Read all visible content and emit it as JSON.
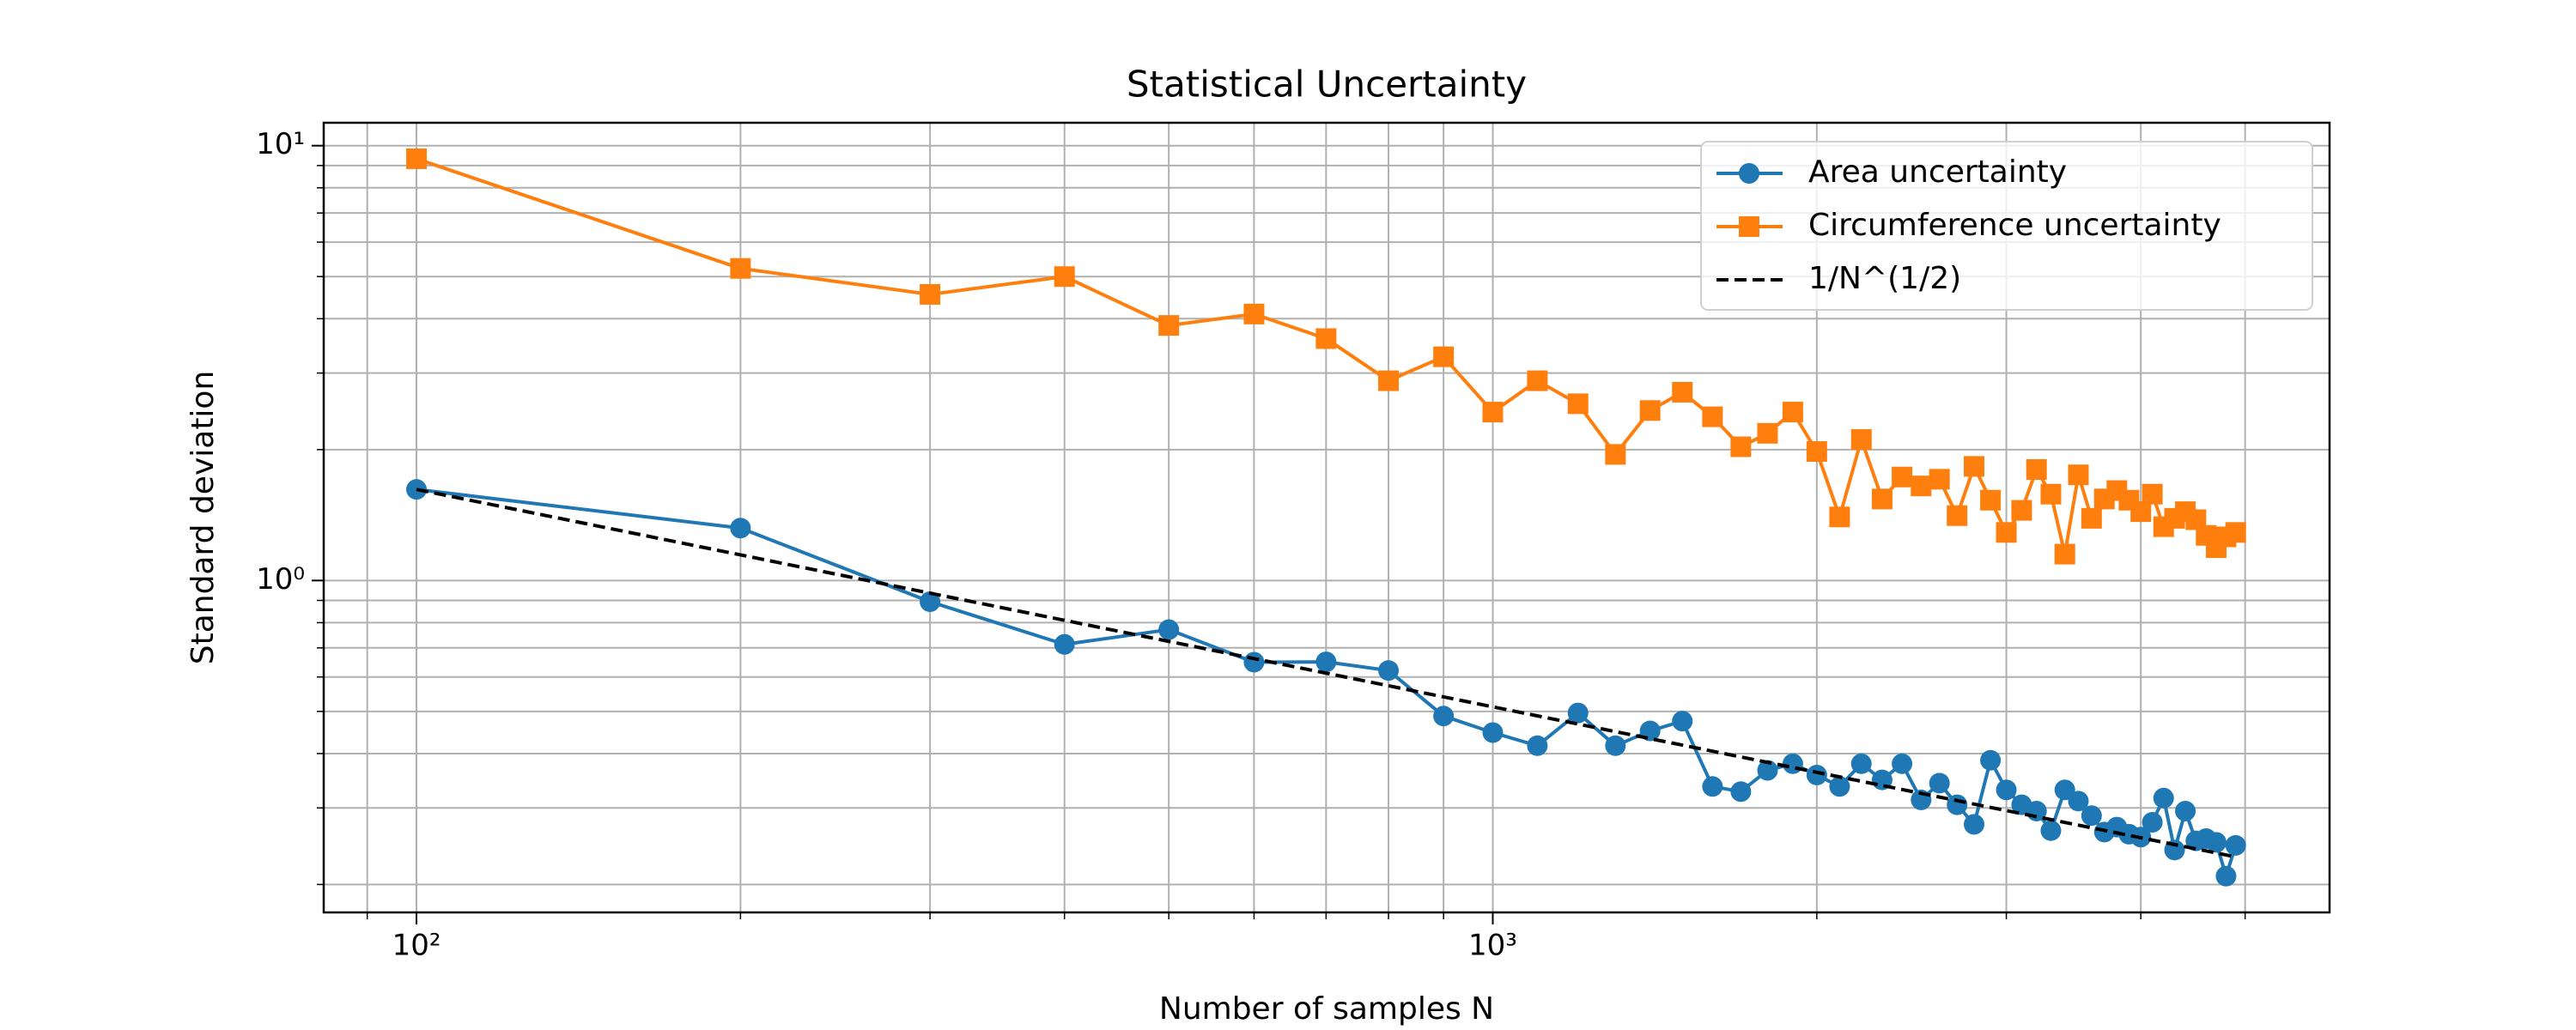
{
  "chart_data": {
    "type": "line",
    "title": "Statistical Uncertainty",
    "xlabel": "Number of samples N",
    "ylabel": "Standard deviation",
    "xscale": "log",
    "yscale": "log",
    "grid": true,
    "legend": "upper right",
    "xlim": [
      82,
      5990
    ],
    "ylim": [
      0.1725,
      11.29
    ],
    "xticks": [
      {
        "value": 100,
        "label": "10²"
      },
      {
        "value": 1000,
        "label": "10³"
      }
    ],
    "yticks": [
      {
        "value": 1,
        "label": "10⁰"
      },
      {
        "value": 10,
        "label": "10¹"
      }
    ],
    "xminorticks": [
      90,
      200,
      300,
      400,
      500,
      600,
      700,
      800,
      900,
      2000,
      3000,
      4000,
      5000
    ],
    "yminorticks": [
      0.2,
      0.3,
      0.4,
      0.5,
      0.6,
      0.7,
      0.8,
      0.9,
      2,
      3,
      4,
      5,
      6,
      7,
      8,
      9
    ],
    "x": [
      100,
      200,
      300,
      400,
      500,
      600,
      700,
      800,
      900,
      1000,
      1100,
      1200,
      1300,
      1400,
      1500,
      1600,
      1700,
      1800,
      1900,
      2000,
      2100,
      2200,
      2300,
      2400,
      2500,
      2600,
      2700,
      2800,
      2900,
      3000,
      3100,
      3200,
      3300,
      3400,
      3500,
      3600,
      3700,
      3800,
      3900,
      4000,
      4100,
      4200,
      4300,
      4400,
      4500,
      4600,
      4700,
      4800,
      4900
    ],
    "series": [
      {
        "name": "Area uncertainty",
        "color": "#1f77b4",
        "marker": "circle",
        "linestyle": "solid",
        "values": [
          1.62,
          1.32,
          0.894,
          0.713,
          0.771,
          0.649,
          0.65,
          0.621,
          0.488,
          0.447,
          0.417,
          0.496,
          0.417,
          0.451,
          0.475,
          0.336,
          0.327,
          0.366,
          0.379,
          0.357,
          0.336,
          0.379,
          0.348,
          0.379,
          0.313,
          0.342,
          0.305,
          0.275,
          0.386,
          0.33,
          0.305,
          0.295,
          0.266,
          0.33,
          0.311,
          0.288,
          0.264,
          0.271,
          0.261,
          0.257,
          0.278,
          0.316,
          0.24,
          0.295,
          0.252,
          0.255,
          0.25,
          0.209,
          0.246
        ]
      },
      {
        "name": "Circumference uncertainty",
        "color": "#ff7f0e",
        "marker": "square",
        "linestyle": "solid",
        "values": [
          9.33,
          5.22,
          4.55,
          5.0,
          3.86,
          4.1,
          3.6,
          2.88,
          3.27,
          2.44,
          2.88,
          2.55,
          1.95,
          2.46,
          2.71,
          2.38,
          2.03,
          2.18,
          2.44,
          1.98,
          1.4,
          2.11,
          1.54,
          1.73,
          1.65,
          1.71,
          1.41,
          1.83,
          1.53,
          1.29,
          1.45,
          1.8,
          1.58,
          1.15,
          1.75,
          1.39,
          1.54,
          1.61,
          1.53,
          1.44,
          1.58,
          1.33,
          1.39,
          1.44,
          1.38,
          1.27,
          1.19,
          1.26,
          1.29
        ]
      },
      {
        "name": "1/N^(1/2)",
        "color": "#000000",
        "marker": "none",
        "linestyle": "dashed",
        "values": [
          1.62,
          1.1455,
          0.9353,
          0.81,
          0.7245,
          0.6614,
          0.6123,
          0.5728,
          0.54,
          0.5123,
          0.4884,
          0.4677,
          0.4493,
          0.433,
          0.4183,
          0.405,
          0.3929,
          0.3818,
          0.3717,
          0.3622,
          0.3535,
          0.3454,
          0.3378,
          0.3307,
          0.324,
          0.3177,
          0.3118,
          0.3061,
          0.3008,
          0.2958,
          0.291,
          0.2864,
          0.282,
          0.2778,
          0.2738,
          0.27,
          0.2663,
          0.2628,
          0.2594,
          0.2561,
          0.253,
          0.25,
          0.247,
          0.2442,
          0.2415,
          0.2389,
          0.2363,
          0.2338,
          0.2314
        ]
      }
    ]
  }
}
